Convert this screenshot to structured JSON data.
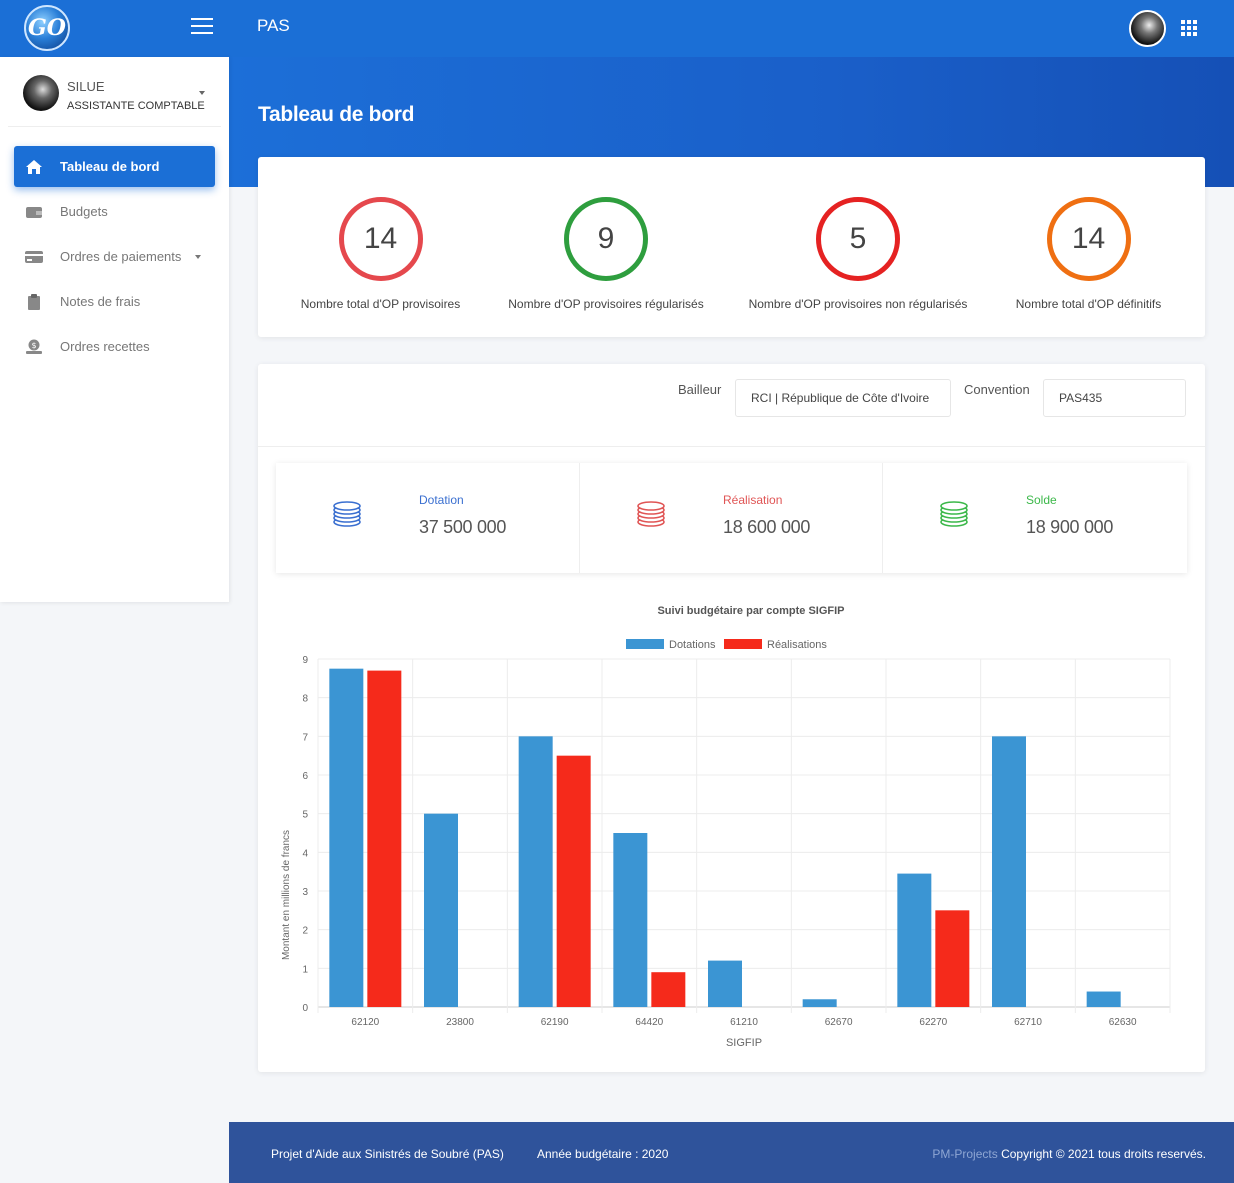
{
  "app": {
    "logo_text": "GO",
    "title": "PAS"
  },
  "user": {
    "name": "SILUE",
    "role": "ASSISTANTE COMPTABLE"
  },
  "sidebar": {
    "items": [
      {
        "label": "Tableau de bord",
        "icon": "home-icon"
      },
      {
        "label": "Budgets",
        "icon": "wallet-icon"
      },
      {
        "label": "Ordres de paiements",
        "icon": "credit-card-icon"
      },
      {
        "label": "Notes de frais",
        "icon": "clipboard-icon"
      },
      {
        "label": "Ordres recettes",
        "icon": "money-hand-icon"
      }
    ]
  },
  "page": {
    "title": "Tableau de bord"
  },
  "stats": [
    {
      "value": "14",
      "label": "Nombre total d'OP provisoires",
      "color": "#e5484d"
    },
    {
      "value": "9",
      "label": "Nombre d'OP provisoires régularisés",
      "color": "#2e9e3e"
    },
    {
      "value": "5",
      "label": "Nombre d'OP provisoires non régularisés",
      "color": "#e52222"
    },
    {
      "value": "14",
      "label": "Nombre total d'OP définitifs",
      "color": "#ef6f12"
    }
  ],
  "filters": {
    "bailleur_label": "Bailleur",
    "bailleur_value": "RCI | République de Côte d'Ivoire",
    "convention_label": "Convention",
    "convention_value": "PAS435"
  },
  "summary": [
    {
      "label": "Dotation",
      "value": "37 500 000",
      "color": "#3a6fd0",
      "icon": "coins-icon"
    },
    {
      "label": "Réalisation",
      "value": "18 600 000",
      "color": "#e05555",
      "icon": "coins-icon"
    },
    {
      "label": "Solde",
      "value": "18 900 000",
      "color": "#3cb84a",
      "icon": "coins-icon"
    }
  ],
  "chart_data": {
    "type": "bar",
    "title": "Suivi budgétaire par compte SIGFIP",
    "xlabel": "SIGFIP",
    "ylabel": "Montant en millions de francs",
    "ylim": [
      0,
      9
    ],
    "yticks": [
      0,
      1,
      2,
      3,
      4,
      5,
      6,
      7,
      8,
      9
    ],
    "categories": [
      "62120",
      "23800",
      "62190",
      "64420",
      "61210",
      "62670",
      "62270",
      "62710",
      "62630"
    ],
    "series": [
      {
        "name": "Dotations",
        "color": "#3b95d3",
        "values": [
          8.75,
          5,
          7,
          4.5,
          1.2,
          0.2,
          3.45,
          7,
          0.4
        ]
      },
      {
        "name": "Réalisations",
        "color": "#f52a1b",
        "values": [
          8.7,
          0,
          6.5,
          0.9,
          0,
          0,
          2.5,
          0,
          0
        ]
      }
    ],
    "legend": "top",
    "grid": true
  },
  "footer": {
    "project": "Projet d'Aide aux Sinistrés de Soubré (PAS)",
    "year": "Année budgétaire : 2020",
    "brand": "PM-Projects",
    "copyright": "Copyright © 2021 tous droits reservés."
  }
}
